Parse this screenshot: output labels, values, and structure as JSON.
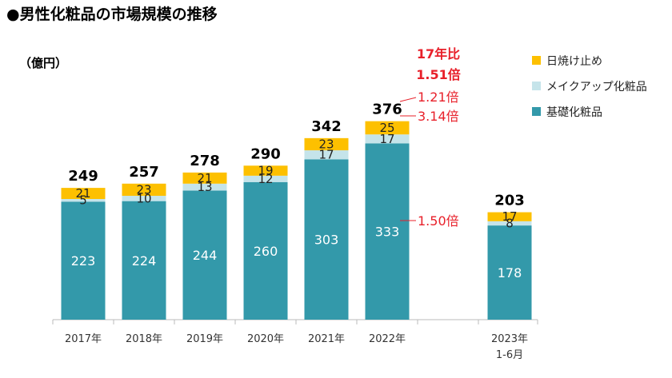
{
  "chart_data": {
    "type": "bar",
    "stacked": true,
    "title": "●男性化粧品の市場規模の推移",
    "unit_label": "（億円）",
    "categories": [
      "2017年",
      "2018年",
      "2019年",
      "2020年",
      "2021年",
      "2022年",
      "2023年\n1-6月"
    ],
    "series": [
      {
        "name": "基礎化粧品",
        "color": "#3399aa",
        "values": [
          223,
          224,
          244,
          260,
          303,
          333,
          178
        ]
      },
      {
        "name": "メイクアップ化粧品",
        "color": "#c5e4ea",
        "values": [
          5,
          10,
          13,
          12,
          17,
          17,
          8
        ]
      },
      {
        "name": "日焼け止め",
        "color": "#fdc000",
        "values": [
          21,
          23,
          21,
          19,
          23,
          25,
          17
        ]
      }
    ],
    "totals": [
      249,
      257,
      278,
      290,
      342,
      376,
      203
    ],
    "legend_order": [
      "日焼け止め",
      "メイクアップ化粧品",
      "基礎化粧品"
    ],
    "ylim": [
      0,
      376
    ],
    "annotations": {
      "comparison_title": "17年比",
      "total_ratio": "1.51倍",
      "sunscreen_ratio": "1.21倍",
      "makeup_ratio": "3.14倍",
      "skincare_ratio": "1.50倍"
    }
  }
}
